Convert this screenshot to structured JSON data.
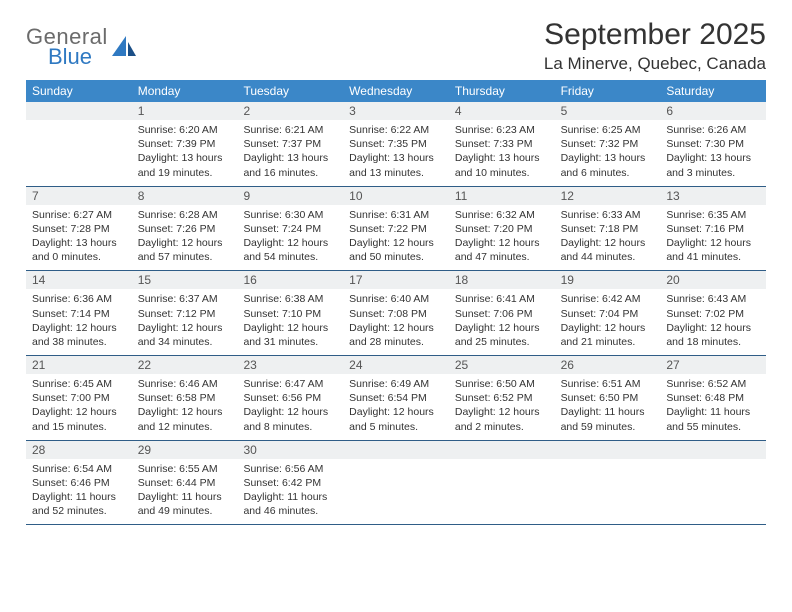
{
  "logo": {
    "top": "General",
    "bottom": "Blue"
  },
  "title": "September 2025",
  "location": "La Minerve, Quebec, Canada",
  "colors": {
    "header_bg": "#3b87c8",
    "header_text": "#ffffff",
    "daynum_bg": "#eef0f1",
    "week_border": "#2f5d87",
    "logo_gray": "#6b6b6b",
    "logo_blue": "#2f79c2",
    "text": "#333333",
    "background": "#ffffff"
  },
  "weekdays": [
    "Sunday",
    "Monday",
    "Tuesday",
    "Wednesday",
    "Thursday",
    "Friday",
    "Saturday"
  ],
  "weeks": [
    [
      null,
      {
        "d": "1",
        "sr": "6:20 AM",
        "ss": "7:39 PM",
        "dl1": "13 hours",
        "dl2": "and 19 minutes."
      },
      {
        "d": "2",
        "sr": "6:21 AM",
        "ss": "7:37 PM",
        "dl1": "13 hours",
        "dl2": "and 16 minutes."
      },
      {
        "d": "3",
        "sr": "6:22 AM",
        "ss": "7:35 PM",
        "dl1": "13 hours",
        "dl2": "and 13 minutes."
      },
      {
        "d": "4",
        "sr": "6:23 AM",
        "ss": "7:33 PM",
        "dl1": "13 hours",
        "dl2": "and 10 minutes."
      },
      {
        "d": "5",
        "sr": "6:25 AM",
        "ss": "7:32 PM",
        "dl1": "13 hours",
        "dl2": "and 6 minutes."
      },
      {
        "d": "6",
        "sr": "6:26 AM",
        "ss": "7:30 PM",
        "dl1": "13 hours",
        "dl2": "and 3 minutes."
      }
    ],
    [
      {
        "d": "7",
        "sr": "6:27 AM",
        "ss": "7:28 PM",
        "dl1": "13 hours",
        "dl2": "and 0 minutes."
      },
      {
        "d": "8",
        "sr": "6:28 AM",
        "ss": "7:26 PM",
        "dl1": "12 hours",
        "dl2": "and 57 minutes."
      },
      {
        "d": "9",
        "sr": "6:30 AM",
        "ss": "7:24 PM",
        "dl1": "12 hours",
        "dl2": "and 54 minutes."
      },
      {
        "d": "10",
        "sr": "6:31 AM",
        "ss": "7:22 PM",
        "dl1": "12 hours",
        "dl2": "and 50 minutes."
      },
      {
        "d": "11",
        "sr": "6:32 AM",
        "ss": "7:20 PM",
        "dl1": "12 hours",
        "dl2": "and 47 minutes."
      },
      {
        "d": "12",
        "sr": "6:33 AM",
        "ss": "7:18 PM",
        "dl1": "12 hours",
        "dl2": "and 44 minutes."
      },
      {
        "d": "13",
        "sr": "6:35 AM",
        "ss": "7:16 PM",
        "dl1": "12 hours",
        "dl2": "and 41 minutes."
      }
    ],
    [
      {
        "d": "14",
        "sr": "6:36 AM",
        "ss": "7:14 PM",
        "dl1": "12 hours",
        "dl2": "and 38 minutes."
      },
      {
        "d": "15",
        "sr": "6:37 AM",
        "ss": "7:12 PM",
        "dl1": "12 hours",
        "dl2": "and 34 minutes."
      },
      {
        "d": "16",
        "sr": "6:38 AM",
        "ss": "7:10 PM",
        "dl1": "12 hours",
        "dl2": "and 31 minutes."
      },
      {
        "d": "17",
        "sr": "6:40 AM",
        "ss": "7:08 PM",
        "dl1": "12 hours",
        "dl2": "and 28 minutes."
      },
      {
        "d": "18",
        "sr": "6:41 AM",
        "ss": "7:06 PM",
        "dl1": "12 hours",
        "dl2": "and 25 minutes."
      },
      {
        "d": "19",
        "sr": "6:42 AM",
        "ss": "7:04 PM",
        "dl1": "12 hours",
        "dl2": "and 21 minutes."
      },
      {
        "d": "20",
        "sr": "6:43 AM",
        "ss": "7:02 PM",
        "dl1": "12 hours",
        "dl2": "and 18 minutes."
      }
    ],
    [
      {
        "d": "21",
        "sr": "6:45 AM",
        "ss": "7:00 PM",
        "dl1": "12 hours",
        "dl2": "and 15 minutes."
      },
      {
        "d": "22",
        "sr": "6:46 AM",
        "ss": "6:58 PM",
        "dl1": "12 hours",
        "dl2": "and 12 minutes."
      },
      {
        "d": "23",
        "sr": "6:47 AM",
        "ss": "6:56 PM",
        "dl1": "12 hours",
        "dl2": "and 8 minutes."
      },
      {
        "d": "24",
        "sr": "6:49 AM",
        "ss": "6:54 PM",
        "dl1": "12 hours",
        "dl2": "and 5 minutes."
      },
      {
        "d": "25",
        "sr": "6:50 AM",
        "ss": "6:52 PM",
        "dl1": "12 hours",
        "dl2": "and 2 minutes."
      },
      {
        "d": "26",
        "sr": "6:51 AM",
        "ss": "6:50 PM",
        "dl1": "11 hours",
        "dl2": "and 59 minutes."
      },
      {
        "d": "27",
        "sr": "6:52 AM",
        "ss": "6:48 PM",
        "dl1": "11 hours",
        "dl2": "and 55 minutes."
      }
    ],
    [
      {
        "d": "28",
        "sr": "6:54 AM",
        "ss": "6:46 PM",
        "dl1": "11 hours",
        "dl2": "and 52 minutes."
      },
      {
        "d": "29",
        "sr": "6:55 AM",
        "ss": "6:44 PM",
        "dl1": "11 hours",
        "dl2": "and 49 minutes."
      },
      {
        "d": "30",
        "sr": "6:56 AM",
        "ss": "6:42 PM",
        "dl1": "11 hours",
        "dl2": "and 46 minutes."
      },
      null,
      null,
      null,
      null
    ]
  ],
  "labels": {
    "sunrise_prefix": "Sunrise: ",
    "sunset_prefix": "Sunset: ",
    "daylight_prefix": "Daylight: "
  }
}
